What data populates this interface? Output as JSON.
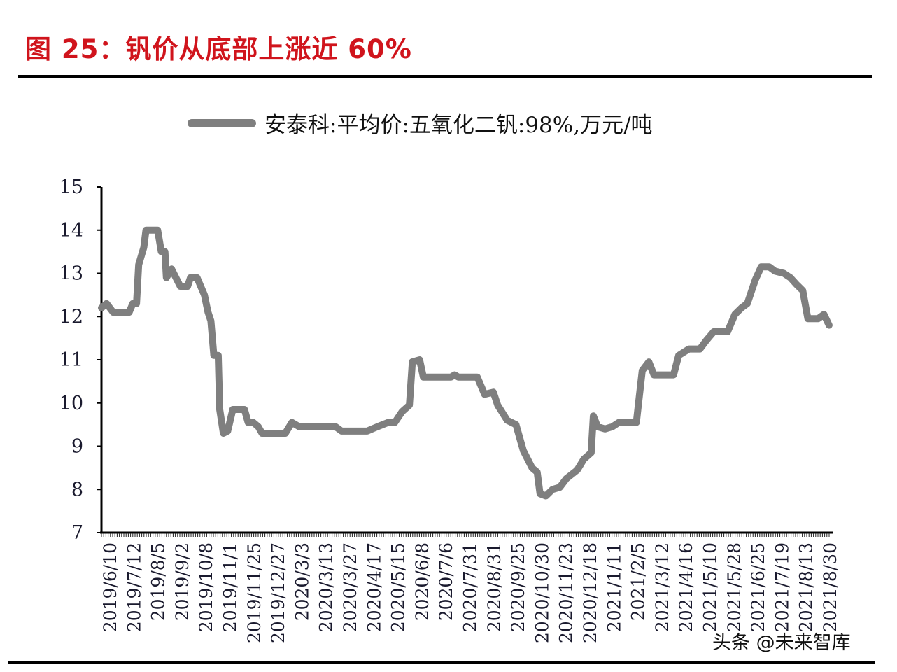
{
  "header": {
    "figure_title": "图 25：钒价从底部上涨近 60%"
  },
  "legend": {
    "series_label": "安泰科:平均价:五氧化二钒:98%,万元/吨",
    "series_color": "#7f7f7f"
  },
  "watermark": "头条 @未来智库",
  "chart_data": {
    "type": "line",
    "title": "钒价从底部上涨近 60%",
    "xlabel": "",
    "ylabel": "万元/吨",
    "ylim": [
      7,
      15
    ],
    "yticks": [
      7,
      8,
      9,
      10,
      11,
      12,
      13,
      14,
      15
    ],
    "grid": false,
    "legend_position": "top",
    "x_tick_labels": [
      "2019/6/10",
      "2019/7/12",
      "2019/8/5",
      "2019/9/2",
      "2019/10/8",
      "2019/11/1",
      "2019/11/25",
      "2019/12/27",
      "2020/3/3",
      "2020/3/13",
      "2020/3/27",
      "2020/4/17",
      "2020/5/15",
      "2020/6/8",
      "2020/7/6",
      "2020/7/31",
      "2020/8/31",
      "2020/9/25",
      "2020/10/30",
      "2020/11/23",
      "2020/12/18",
      "2021/1/11",
      "2021/2/5",
      "2021/3/12",
      "2021/4/16",
      "2021/5/10",
      "2021/5/28",
      "2021/6/25",
      "2021/7/19",
      "2021/8/13",
      "2021/8/30"
    ],
    "series": [
      {
        "name": "安泰科:平均价:五氧化二钒:98%,万元/吨",
        "color": "#7f7f7f",
        "points": [
          [
            0.0,
            12.2
          ],
          [
            0.007,
            12.3
          ],
          [
            0.016,
            12.1
          ],
          [
            0.038,
            12.1
          ],
          [
            0.043,
            12.3
          ],
          [
            0.048,
            12.3
          ],
          [
            0.051,
            13.2
          ],
          [
            0.058,
            13.6
          ],
          [
            0.061,
            14.0
          ],
          [
            0.077,
            14.0
          ],
          [
            0.082,
            13.5
          ],
          [
            0.087,
            13.5
          ],
          [
            0.089,
            12.9
          ],
          [
            0.096,
            13.1
          ],
          [
            0.108,
            12.7
          ],
          [
            0.118,
            12.7
          ],
          [
            0.122,
            12.9
          ],
          [
            0.131,
            12.9
          ],
          [
            0.141,
            12.5
          ],
          [
            0.146,
            12.1
          ],
          [
            0.15,
            11.9
          ],
          [
            0.154,
            11.1
          ],
          [
            0.16,
            11.1
          ],
          [
            0.162,
            9.85
          ],
          [
            0.167,
            9.3
          ],
          [
            0.173,
            9.35
          ],
          [
            0.18,
            9.85
          ],
          [
            0.196,
            9.85
          ],
          [
            0.201,
            9.55
          ],
          [
            0.208,
            9.55
          ],
          [
            0.215,
            9.45
          ],
          [
            0.22,
            9.3
          ],
          [
            0.252,
            9.3
          ],
          [
            0.261,
            9.55
          ],
          [
            0.271,
            9.45
          ],
          [
            0.321,
            9.45
          ],
          [
            0.329,
            9.35
          ],
          [
            0.357,
            9.35
          ],
          [
            0.364,
            9.35
          ],
          [
            0.378,
            9.45
          ],
          [
            0.393,
            9.55
          ],
          [
            0.402,
            9.55
          ],
          [
            0.412,
            9.8
          ],
          [
            0.422,
            9.95
          ],
          [
            0.426,
            10.95
          ],
          [
            0.436,
            11.0
          ],
          [
            0.441,
            10.6
          ],
          [
            0.479,
            10.6
          ],
          [
            0.484,
            10.65
          ],
          [
            0.489,
            10.6
          ],
          [
            0.515,
            10.6
          ],
          [
            0.525,
            10.2
          ],
          [
            0.537,
            10.25
          ],
          [
            0.543,
            9.95
          ],
          [
            0.556,
            9.6
          ],
          [
            0.568,
            9.5
          ],
          [
            0.578,
            8.9
          ],
          [
            0.59,
            8.5
          ],
          [
            0.597,
            8.4
          ],
          [
            0.601,
            7.9
          ],
          [
            0.609,
            7.85
          ],
          [
            0.618,
            8.0
          ],
          [
            0.628,
            8.05
          ],
          [
            0.637,
            8.25
          ],
          [
            0.652,
            8.45
          ],
          [
            0.661,
            8.7
          ],
          [
            0.671,
            8.85
          ],
          [
            0.674,
            9.7
          ],
          [
            0.68,
            9.45
          ],
          [
            0.69,
            9.4
          ],
          [
            0.7,
            9.45
          ],
          [
            0.709,
            9.55
          ],
          [
            0.733,
            9.55
          ],
          [
            0.741,
            10.75
          ],
          [
            0.75,
            10.95
          ],
          [
            0.757,
            10.65
          ],
          [
            0.784,
            10.65
          ],
          [
            0.791,
            11.1
          ],
          [
            0.805,
            11.25
          ],
          [
            0.82,
            11.25
          ],
          [
            0.829,
            11.45
          ],
          [
            0.839,
            11.65
          ],
          [
            0.858,
            11.65
          ],
          [
            0.868,
            12.05
          ],
          [
            0.877,
            12.2
          ],
          [
            0.885,
            12.3
          ],
          [
            0.896,
            12.85
          ],
          [
            0.904,
            13.15
          ],
          [
            0.915,
            13.15
          ],
          [
            0.923,
            13.05
          ],
          [
            0.935,
            13.0
          ],
          [
            0.944,
            12.9
          ],
          [
            0.952,
            12.75
          ],
          [
            0.961,
            12.6
          ],
          [
            0.968,
            11.95
          ],
          [
            0.982,
            11.95
          ],
          [
            0.99,
            12.05
          ],
          [
            0.997,
            11.8
          ]
        ]
      }
    ]
  }
}
